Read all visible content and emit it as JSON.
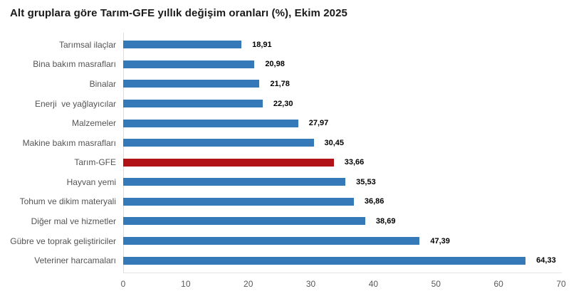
{
  "title": "Alt gruplara göre Tarım-GFE yıllık değişim oranları (%), Ekim 2025",
  "chart_data": {
    "type": "bar",
    "orientation": "horizontal",
    "title": "Alt gruplara göre Tarım-GFE yıllık değişim oranları (%), Ekim 2025",
    "categories": [
      "Tarımsal ilaçlar",
      "Bina bakım masrafları",
      "Binalar",
      "Enerji  ve yağlayıcılar",
      "Malzemeler",
      "Makine bakım masrafları",
      "Tarım-GFE",
      "Hayvan yemi",
      "Tohum ve dikim materyali",
      "Diğer mal ve hizmetler",
      "Gübre ve toprak geliştiriciler",
      "Veteriner harcamaları"
    ],
    "values": [
      18.91,
      20.98,
      21.78,
      22.3,
      27.97,
      30.45,
      33.66,
      35.53,
      36.86,
      38.69,
      47.39,
      64.33
    ],
    "value_labels": [
      "18,91",
      "20,98",
      "21,78",
      "22,30",
      "27,97",
      "30,45",
      "33,66",
      "35,53",
      "36,86",
      "38,69",
      "47,39",
      "64,33"
    ],
    "highlight_index": 6,
    "highlight_category": "Tarım-GFE",
    "bar_color": "#3579b8",
    "highlight_color": "#b01218",
    "axis_line_color": "#e0e0e0",
    "xlabel": "",
    "ylabel": "",
    "xlim": [
      0,
      70
    ],
    "x_ticks": [
      "0",
      "10",
      "20",
      "30",
      "40",
      "50",
      "60",
      "70"
    ],
    "grid": false,
    "legend": "none"
  }
}
